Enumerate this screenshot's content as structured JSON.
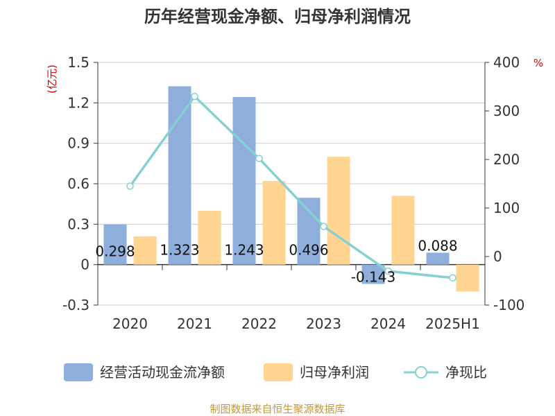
{
  "title": "历年经营现金净额、归母净利润情况",
  "source": "制图数据来自恒生聚源数据库",
  "colors": {
    "title": "#333333",
    "axis_unit": "#cc0000",
    "bar_cash": "#8eaedb",
    "bar_profit": "#ffd591",
    "line": "#85d0d2",
    "grid": "#cccccc",
    "axis": "#333333",
    "source": "#c09a3a"
  },
  "chart_data": {
    "type": "bar",
    "categories": [
      "2020",
      "2021",
      "2022",
      "2023",
      "2024",
      "2025H1"
    ],
    "left_axis": {
      "unit": "(亿元)",
      "ylim": [
        -0.3,
        1.5
      ],
      "ticks": [
        "-0.3",
        "0",
        "0.3",
        "0.6",
        "0.9",
        "1.2",
        "1.5"
      ]
    },
    "right_axis": {
      "unit": "%",
      "ylim": [
        -100,
        400
      ],
      "ticks": [
        "-100",
        "0",
        "100",
        "200",
        "300",
        "400"
      ]
    },
    "grid": true,
    "legend_position": "bottom",
    "series": [
      {
        "name": "经营活动现金流净额",
        "type": "bar",
        "axis": "left",
        "values": [
          0.298,
          1.323,
          1.243,
          0.496,
          -0.143,
          0.088
        ],
        "labels": [
          "0.298",
          "1.323",
          "1.243",
          "0.496",
          "-0.143",
          "0.088"
        ]
      },
      {
        "name": "归母净利润",
        "type": "bar",
        "axis": "left",
        "values": [
          0.21,
          0.4,
          0.62,
          0.8,
          0.51,
          -0.2
        ]
      },
      {
        "name": "净现比",
        "type": "line",
        "axis": "right",
        "values": [
          145,
          330,
          202,
          62,
          -30,
          -44
        ]
      }
    ]
  }
}
